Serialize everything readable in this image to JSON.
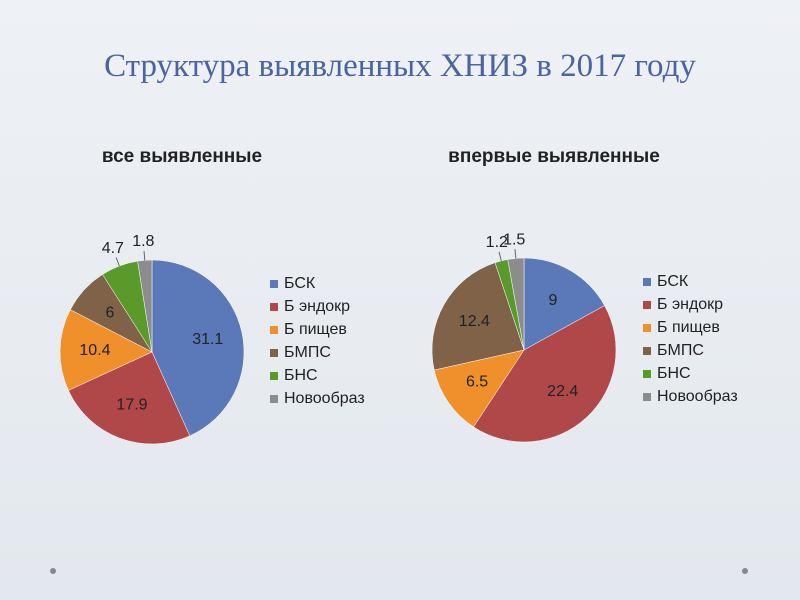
{
  "title": "Структура выявленных ХНИЗ в 2017 году",
  "chart_data": [
    {
      "type": "pie",
      "title": "все выявленные",
      "categories": [
        "БСК",
        "Б эндокр",
        "Б пищев",
        "БМПС",
        "БНС",
        "Новообраз"
      ],
      "values": [
        31.1,
        17.9,
        10.4,
        6,
        4.7,
        1.8
      ],
      "colors": [
        "#5b78b8",
        "#b0484a",
        "#f0902a",
        "#7f6248",
        "#5a9a2a",
        "#8c8c8c"
      ],
      "legend": "right"
    },
    {
      "type": "pie",
      "title": "впервые выявленные",
      "categories": [
        "БСК",
        "Б эндокр",
        "Б пищев",
        "БМПС",
        "БНС",
        "Новообраз"
      ],
      "values": [
        9,
        22.4,
        6.5,
        12.4,
        1.2,
        1.5
      ],
      "colors": [
        "#5b78b8",
        "#b0484a",
        "#f0902a",
        "#7f6248",
        "#5a9a2a",
        "#8c8c8c"
      ],
      "legend": "right"
    }
  ]
}
